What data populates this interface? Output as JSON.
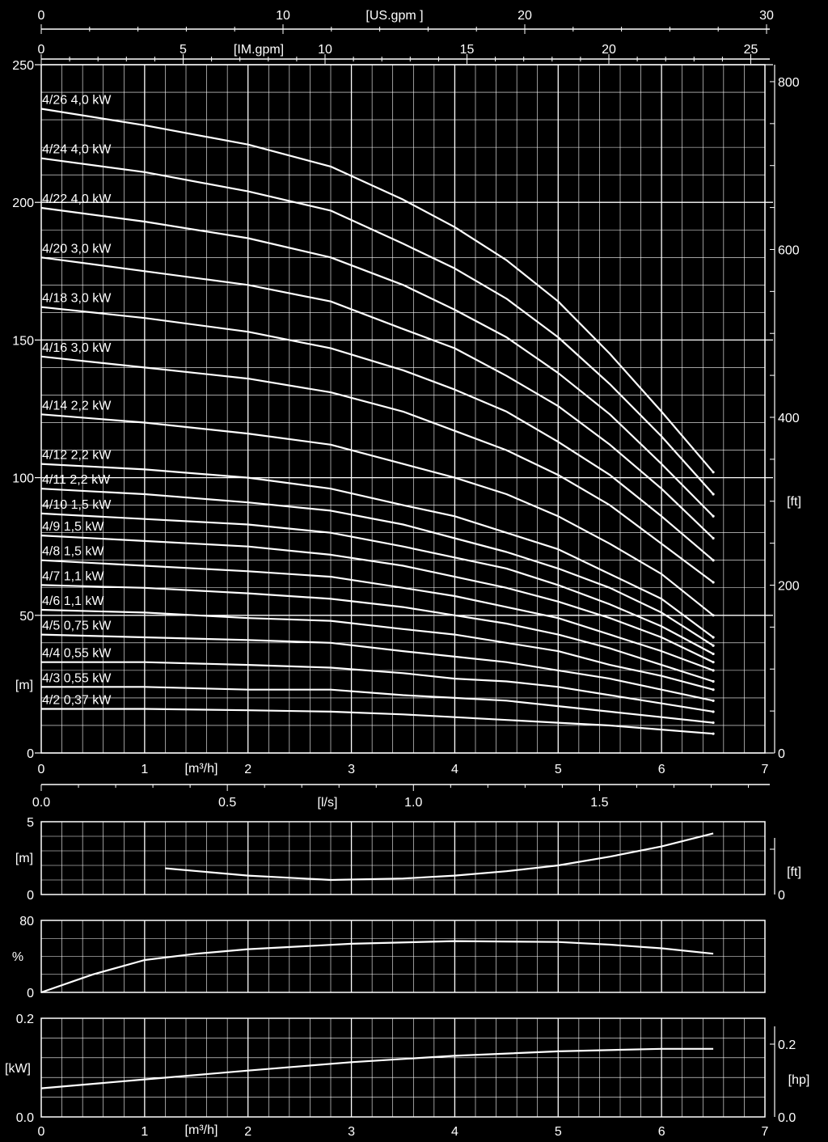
{
  "colors": {
    "background": "#000000",
    "lines": "#ffffff"
  },
  "chart_data": [
    {
      "type": "line",
      "panel": "head",
      "xlabel": "[m³/h]",
      "x_ticks": [
        "0",
        "1",
        "2",
        "3",
        "4",
        "5",
        "6",
        "7"
      ],
      "xlim": [
        0,
        7
      ],
      "ylabel": "[m]",
      "y_ticks": [
        "0",
        "50",
        "100",
        "150",
        "200",
        "250"
      ],
      "ylim": [
        0,
        250
      ],
      "ylabel_right": "[ft]",
      "y_ticks_right": [
        "0",
        "200",
        "400",
        "600",
        "800"
      ],
      "top_axis_us": {
        "label": "[US.gpm ]",
        "ticks": [
          "0",
          "10",
          "20",
          "30"
        ]
      },
      "top_axis_im": {
        "label": "[IM.gpm]",
        "ticks": [
          "0",
          "5",
          "10",
          "15",
          "20",
          "25"
        ]
      },
      "ls_axis": {
        "label": "[l/s]",
        "ticks": [
          "0.0",
          "0.5",
          "1.0",
          "1.5"
        ]
      },
      "grid": true,
      "series": [
        {
          "name": "4/26 4,0  kW",
          "x": [
            0,
            1,
            2,
            2.8,
            3.5,
            4,
            4.5,
            5,
            5.5,
            6,
            6.5
          ],
          "y": [
            234,
            228,
            221,
            213,
            201,
            191,
            179,
            164,
            145,
            124,
            102
          ]
        },
        {
          "name": "4/24 4,0 kW",
          "x": [
            0,
            1,
            2,
            2.8,
            3.5,
            4,
            4.5,
            5,
            5.5,
            6,
            6.5
          ],
          "y": [
            216,
            211,
            204,
            197,
            185,
            176,
            165,
            151,
            134,
            115,
            94
          ]
        },
        {
          "name": "4/22 4,0  kW",
          "x": [
            0,
            1,
            2,
            2.8,
            3.5,
            4,
            4.5,
            5,
            5.5,
            6,
            6.5
          ],
          "y": [
            198,
            193,
            187,
            180,
            170,
            161,
            151,
            138,
            123,
            105,
            86
          ]
        },
        {
          "name": "4/20 3,0 kW",
          "x": [
            0,
            1,
            2,
            2.8,
            3.5,
            4,
            4.5,
            5,
            5.5,
            6,
            6.5
          ],
          "y": [
            180,
            175,
            170,
            164,
            154,
            147,
            137,
            126,
            112,
            96,
            78
          ]
        },
        {
          "name": "4/18 3,0 kW",
          "x": [
            0,
            1,
            2,
            2.8,
            3.5,
            4,
            4.5,
            5,
            5.5,
            6,
            6.5
          ],
          "y": [
            162,
            158,
            153,
            147,
            139,
            132,
            124,
            113,
            101,
            86,
            70
          ]
        },
        {
          "name": "4/16 3,0 kW",
          "x": [
            0,
            1,
            2,
            2.8,
            3.5,
            4,
            4.5,
            5,
            5.5,
            6,
            6.5
          ],
          "y": [
            144,
            140,
            136,
            131,
            124,
            117,
            110,
            101,
            90,
            76,
            62
          ]
        },
        {
          "name": "4/14 2,2 kW",
          "x": [
            0,
            1,
            2,
            2.8,
            3.5,
            4,
            4.5,
            5,
            5.5,
            6,
            6.5
          ],
          "y": [
            123,
            120,
            116,
            112,
            105,
            100,
            94,
            86,
            76,
            65,
            50
          ]
        },
        {
          "name": "4/12 2,2 kW",
          "x": [
            0,
            1,
            2,
            2.8,
            3.5,
            4,
            4.5,
            5,
            5.5,
            6,
            6.5
          ],
          "y": [
            105,
            103,
            100,
            96,
            90,
            86,
            80,
            74,
            65,
            56,
            42
          ]
        },
        {
          "name": "4/11 2,2 kW",
          "x": [
            0,
            1,
            2,
            2.8,
            3.5,
            4,
            4.5,
            5,
            5.5,
            6,
            6.5
          ],
          "y": [
            96,
            94,
            91,
            88,
            83,
            78,
            73,
            67,
            60,
            51,
            39
          ]
        },
        {
          "name": "4/10 1,5 kW",
          "x": [
            0,
            1,
            2,
            2.8,
            3.5,
            4,
            4.5,
            5,
            5.5,
            6,
            6.5
          ],
          "y": [
            87,
            85,
            83,
            80,
            75,
            71,
            67,
            61,
            54,
            46,
            36
          ]
        },
        {
          "name": "4/9 1,5 kW",
          "x": [
            0,
            1,
            2,
            2.8,
            3.5,
            4,
            4.5,
            5,
            5.5,
            6,
            6.5
          ],
          "y": [
            79,
            77,
            75,
            72,
            68,
            64,
            60,
            55,
            49,
            42,
            33
          ]
        },
        {
          "name": "4/8 1,5 kW",
          "x": [
            0,
            1,
            2,
            2.8,
            3.5,
            4,
            4.5,
            5,
            5.5,
            6,
            6.5
          ],
          "y": [
            70,
            68,
            66,
            64,
            60,
            57,
            53,
            49,
            43,
            37,
            30
          ]
        },
        {
          "name": "4/7 1,1 kW",
          "x": [
            0,
            1,
            2,
            2.8,
            3.5,
            4,
            4.5,
            5,
            5.5,
            6,
            6.5
          ],
          "y": [
            61,
            60,
            58,
            56,
            53,
            50,
            47,
            43,
            38,
            32,
            26
          ]
        },
        {
          "name": "4/6 1,1 kW",
          "x": [
            0,
            1,
            2,
            2.8,
            3.5,
            4,
            4.5,
            5,
            5.5,
            6,
            6.5
          ],
          "y": [
            52,
            51,
            49,
            48,
            45,
            43,
            40,
            37,
            32,
            28,
            23
          ]
        },
        {
          "name": "4/5 0,75 kW",
          "x": [
            0,
            1,
            2,
            2.8,
            3.5,
            4,
            4.5,
            5,
            5.5,
            6,
            6.5
          ],
          "y": [
            43,
            42,
            41,
            40,
            37,
            35,
            33,
            30,
            27,
            23,
            19
          ]
        },
        {
          "name": "4/4 0,55 kW",
          "x": [
            0,
            1,
            2,
            2.8,
            3.5,
            4,
            4.5,
            5,
            5.5,
            6,
            6.5
          ],
          "y": [
            33,
            33,
            32,
            31,
            29,
            27,
            26,
            24,
            21,
            18,
            15
          ]
        },
        {
          "name": "4/3 0,55 kW",
          "x": [
            0,
            1,
            2,
            2.8,
            3.5,
            4,
            4.5,
            5,
            5.5,
            6,
            6.5
          ],
          "y": [
            24,
            24,
            23,
            23,
            21,
            20,
            19,
            17,
            15,
            13,
            11
          ]
        },
        {
          "name": "4/2 0,37 kW",
          "x": [
            0,
            1,
            2,
            2.8,
            3.5,
            4,
            4.5,
            5,
            5.5,
            6,
            6.5
          ],
          "y": [
            16,
            16,
            15.5,
            15,
            14,
            13,
            12,
            11,
            10,
            8.5,
            7
          ]
        }
      ]
    },
    {
      "type": "line",
      "panel": "npsh",
      "ylabel": "[m]",
      "y_ticks": [
        "0",
        "5"
      ],
      "ylim": [
        0,
        5
      ],
      "ylabel_right": "[ft]",
      "y_ticks_right": [
        "0"
      ],
      "xlim": [
        0,
        7
      ],
      "grid": true,
      "series": [
        {
          "x": [
            1.2,
            2,
            2.8,
            3.5,
            4,
            4.5,
            5,
            5.5,
            6,
            6.5
          ],
          "y": [
            1.8,
            1.3,
            1.0,
            1.1,
            1.3,
            1.6,
            2.0,
            2.6,
            3.3,
            4.2
          ]
        }
      ]
    },
    {
      "type": "line",
      "panel": "efficiency",
      "ylabel": "%",
      "y_ticks": [
        "0",
        "80"
      ],
      "ylim": [
        0,
        80
      ],
      "xlim": [
        0,
        7
      ],
      "grid": true,
      "series": [
        {
          "x": [
            0,
            0.5,
            1,
            1.5,
            2,
            3,
            4,
            5,
            5.5,
            6,
            6.5
          ],
          "y": [
            0,
            20,
            36,
            43,
            48,
            54,
            57,
            56,
            53,
            49,
            43
          ]
        }
      ]
    },
    {
      "type": "line",
      "panel": "power",
      "ylabel": "[kW]",
      "y_ticks": [
        "0.0",
        "0.2"
      ],
      "ylim": [
        0,
        0.2
      ],
      "ylabel_right": "[hp]",
      "y_ticks_right": [
        "0.0",
        "0.2"
      ],
      "xlabel": "[m³/h]",
      "x_ticks": [
        "0",
        "1",
        "2",
        "3",
        "4",
        "5",
        "6",
        "7"
      ],
      "xlim": [
        0,
        7
      ],
      "grid": true,
      "series": [
        {
          "x": [
            0,
            1,
            2,
            3,
            4,
            5,
            6,
            6.5
          ],
          "y": [
            0.058,
            0.076,
            0.094,
            0.111,
            0.124,
            0.133,
            0.138,
            0.138
          ]
        }
      ]
    }
  ]
}
